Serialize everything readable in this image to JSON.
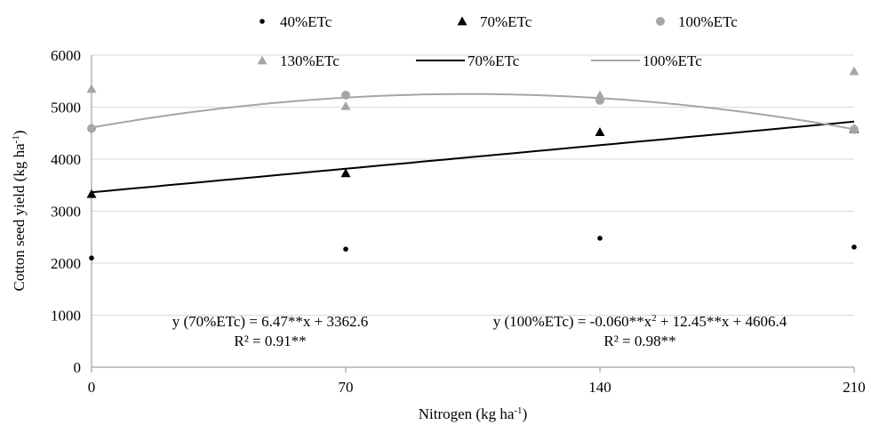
{
  "chart_data": {
    "type": "scatter",
    "xlabel": "Nitrogen (kg ha",
    "xlabel_sup": "-1",
    "xlabel_end": ")",
    "ylabel": "Cotton seed yield (kg ha",
    "ylabel_sup": "-1",
    "ylabel_end": ")",
    "xlim": [
      0,
      210
    ],
    "ylim": [
      0,
      6000
    ],
    "x_ticks": [
      0,
      70,
      140,
      210
    ],
    "y_ticks": [
      0,
      1000,
      2000,
      3000,
      4000,
      5000,
      6000
    ],
    "grid": "horizontal",
    "legend_position": "top",
    "series": [
      {
        "name": "40%ETc",
        "marker": "dot",
        "color": "#000000",
        "x": [
          0,
          70,
          140,
          210
        ],
        "y": [
          2100,
          2270,
          2480,
          2310
        ]
      },
      {
        "name": "70%ETc",
        "marker": "triangle",
        "color": "#000000",
        "x": [
          0,
          70,
          140,
          210
        ],
        "y": [
          3330,
          3730,
          4520,
          4580
        ]
      },
      {
        "name": "100%ETc",
        "marker": "circle",
        "color": "#a6a6a6",
        "x": [
          0,
          70,
          140,
          210
        ],
        "y": [
          4590,
          5230,
          5130,
          4570
        ]
      },
      {
        "name": "130%ETc",
        "marker": "triangle",
        "color": "#a6a6a6",
        "x": [
          0,
          70,
          140,
          210
        ],
        "y": [
          5350,
          5020,
          5230,
          5690
        ]
      }
    ],
    "trendlines": [
      {
        "name": "70%ETc",
        "color": "#000000",
        "form": "linear",
        "coef": [
          3362.6,
          6.47
        ]
      },
      {
        "name": "100%ETc",
        "color": "#a6a6a6",
        "form": "quadratic",
        "coef": [
          4606.4,
          12.45,
          -0.06
        ]
      }
    ],
    "annotations": {
      "eq70": "y (70%ETc) = 6.47**x + 3362.6",
      "r2_70": "R² = 0.91**",
      "eq100_a": "y (100%ETc) = -0.060**x",
      "eq100_sup": "2",
      "eq100_b": " + 12.45**x + 4606.4",
      "r2_100": "R² = 0.98**"
    }
  }
}
